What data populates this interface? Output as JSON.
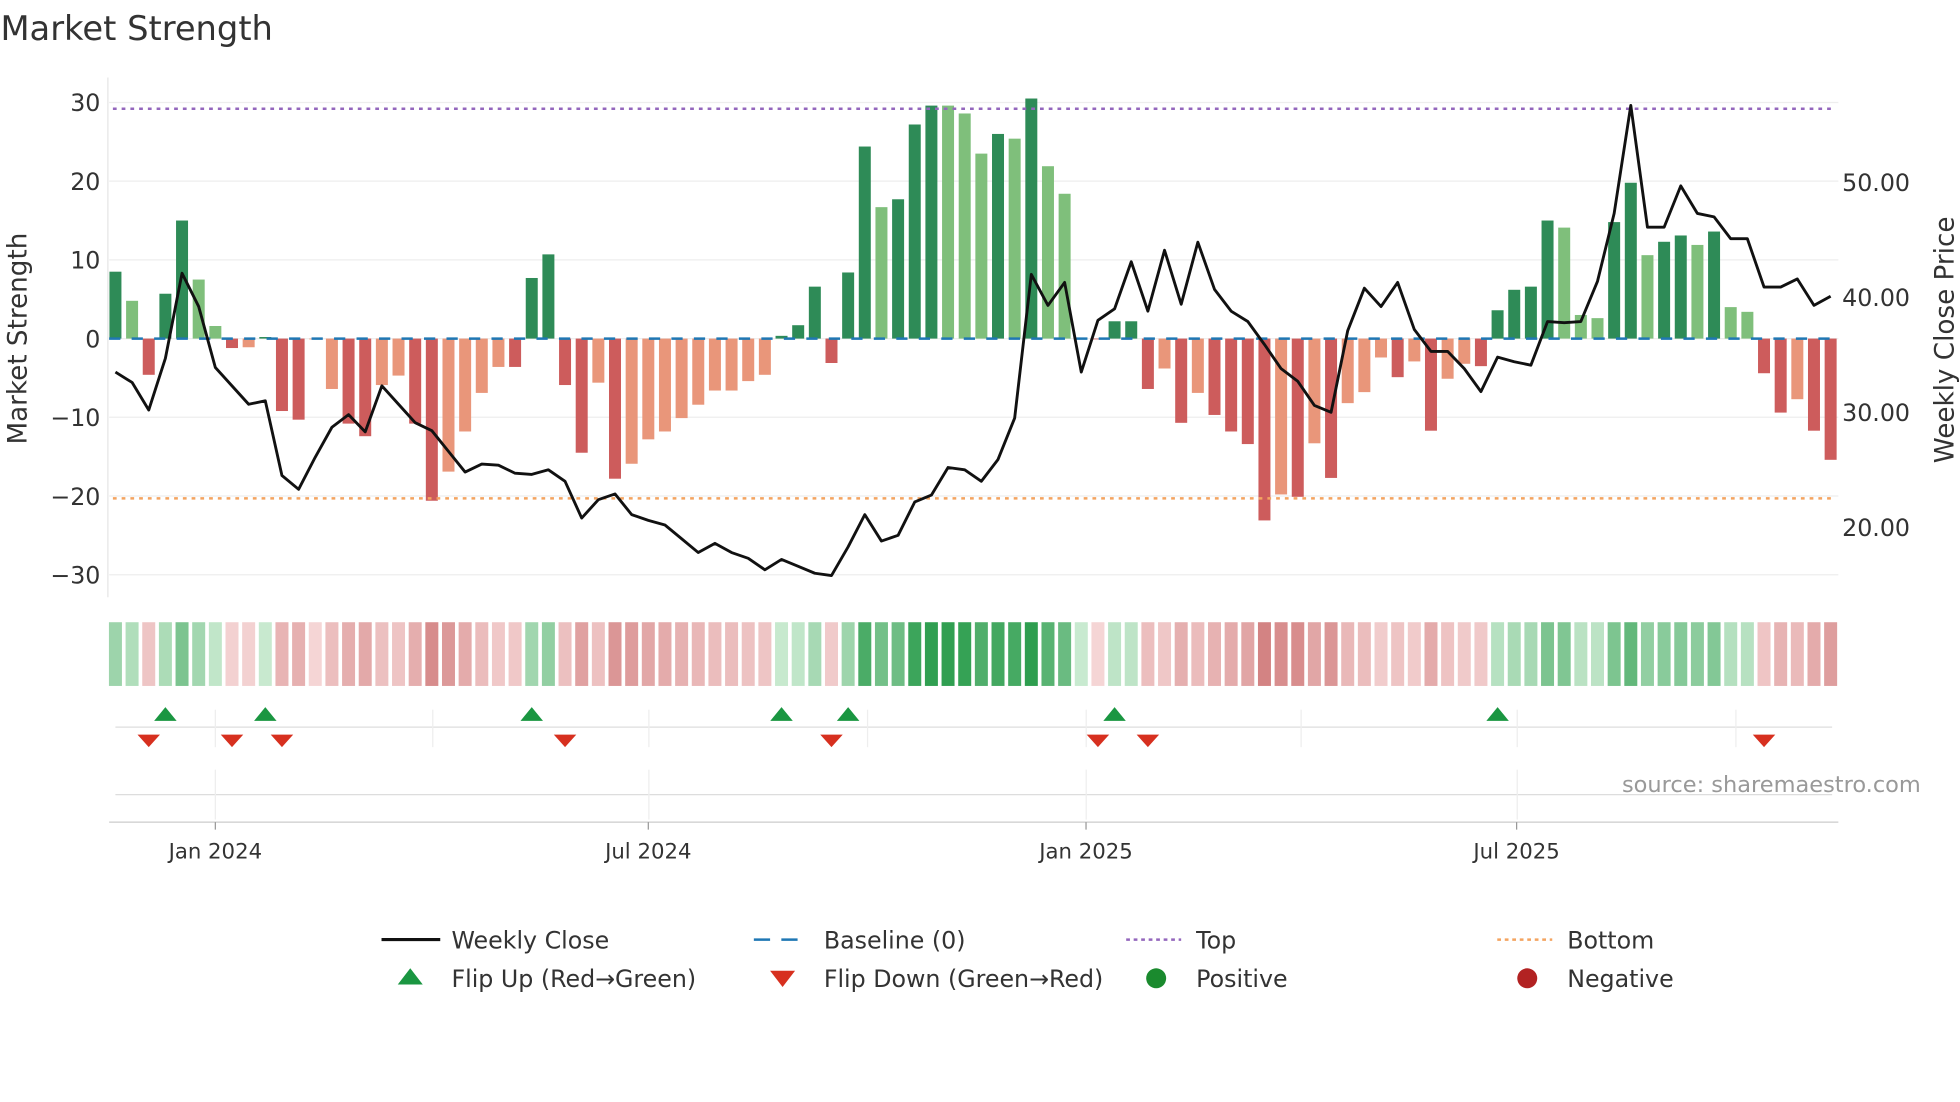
{
  "chart_data": {
    "type": "bar",
    "title": "Market Strength",
    "ylabel": "Market Strength",
    "y2label": "Weekly Close Price",
    "ylim": [
      -33,
      33
    ],
    "y2lim": [
      13.9,
      59.1
    ],
    "yticks": [
      -30,
      -20,
      -10,
      0,
      10,
      20,
      30
    ],
    "y2ticks": [
      "20.00",
      "30.00",
      "40.00",
      "50.00"
    ],
    "start_date": "2023-11-20",
    "interval_days": 7,
    "xticks": [
      {
        "date": "2024-01-01",
        "label": "Jan 2024"
      },
      {
        "date": "2024-07-01",
        "label": "Jul 2024"
      },
      {
        "date": "2025-01-01",
        "label": "Jan 2025"
      },
      {
        "date": "2025-07-01",
        "label": "Jul 2025"
      }
    ],
    "top_level": 29.2,
    "bottom_level": -20.3,
    "strength": [
      8.5,
      4.8,
      -4.6,
      5.7,
      15.0,
      7.5,
      1.6,
      -1.2,
      -1.1,
      0.2,
      -9.2,
      -10.3,
      -0.1,
      -6.4,
      -10.8,
      -12.4,
      -5.9,
      -4.7,
      -10.8,
      -20.6,
      -16.9,
      -11.8,
      -6.9,
      -3.6,
      -3.6,
      7.7,
      10.7,
      -5.9,
      -14.5,
      -5.6,
      -17.8,
      -15.9,
      -12.8,
      -11.8,
      -10.1,
      -8.4,
      -6.6,
      -6.6,
      -5.4,
      -4.6,
      0.35,
      1.7,
      6.6,
      -3.1,
      8.4,
      24.4,
      16.7,
      17.7,
      27.2,
      29.6,
      29.6,
      28.6,
      23.5,
      26.0,
      25.4,
      30.5,
      21.9,
      18.4,
      0.1,
      -0.1,
      2.2,
      2.2,
      -6.4,
      -3.8,
      -10.7,
      -6.9,
      -9.7,
      -11.8,
      -13.4,
      -23.1,
      -19.8,
      -20.1,
      -13.3,
      -17.7,
      -8.2,
      -6.8,
      -2.4,
      -4.9,
      -2.9,
      -11.7,
      -5.1,
      -3.2,
      -3.5,
      3.6,
      6.2,
      6.6,
      15.0,
      14.1,
      3.0,
      2.6,
      14.8,
      19.8,
      10.6,
      12.3,
      13.1,
      11.9,
      13.6,
      4.0,
      3.4,
      -4.4,
      -9.4,
      -7.7,
      -11.7,
      -15.4
    ],
    "shade": [
      "d",
      "l",
      "d",
      "d",
      "d",
      "l",
      "l",
      "d",
      "l",
      "d",
      "d",
      "d",
      "l",
      "l",
      "d",
      "d",
      "l",
      "l",
      "d",
      "d",
      "l",
      "l",
      "l",
      "l",
      "d",
      "d",
      "d",
      "d",
      "d",
      "l",
      "d",
      "l",
      "l",
      "l",
      "l",
      "l",
      "l",
      "l",
      "l",
      "l",
      "d",
      "d",
      "d",
      "d",
      "d",
      "d",
      "l",
      "d",
      "d",
      "d",
      "l",
      "l",
      "l",
      "d",
      "l",
      "d",
      "l",
      "l",
      "d",
      "d",
      "d",
      "d",
      "d",
      "l",
      "d",
      "l",
      "d",
      "d",
      "d",
      "d",
      "l",
      "d",
      "l",
      "d",
      "l",
      "l",
      "l",
      "d",
      "l",
      "d",
      "l",
      "l",
      "d",
      "d",
      "d",
      "d",
      "d",
      "l",
      "l",
      "l",
      "d",
      "d",
      "l",
      "d",
      "d",
      "l",
      "d",
      "l",
      "l",
      "d",
      "d",
      "l",
      "d",
      "d"
    ],
    "close": [
      33.5,
      32.6,
      30.2,
      34.7,
      42.1,
      39.2,
      33.9,
      32.3,
      30.7,
      31.0,
      24.5,
      23.3,
      26.1,
      28.7,
      29.8,
      28.3,
      32.3,
      30.7,
      29.1,
      28.4,
      26.6,
      24.8,
      25.5,
      25.4,
      24.7,
      24.6,
      25.0,
      24.0,
      20.8,
      22.4,
      22.9,
      21.1,
      20.6,
      20.2,
      19.0,
      17.8,
      18.6,
      17.8,
      17.3,
      16.3,
      17.2,
      16.6,
      16.0,
      15.8,
      18.3,
      21.1,
      18.8,
      19.3,
      22.2,
      22.8,
      25.2,
      25.0,
      24.0,
      25.9,
      29.5,
      42.0,
      39.3,
      41.3,
      33.5,
      38.0,
      39.0,
      43.1,
      38.8,
      44.1,
      39.4,
      44.8,
      40.7,
      38.8,
      37.9,
      35.9,
      33.8,
      32.7,
      30.6,
      30.0,
      37.1,
      40.8,
      39.2,
      41.3,
      37.2,
      35.3,
      35.3,
      33.8,
      31.8,
      34.8,
      34.4,
      34.1,
      37.9,
      37.8,
      37.9,
      41.4,
      47.3,
      56.7,
      46.1,
      46.1,
      49.7,
      47.3,
      47.0,
      45.1,
      45.1,
      40.9,
      40.9,
      41.6,
      39.3,
      40.1
    ],
    "legend": {
      "placement": "bottom",
      "items": [
        {
          "label": "Weekly Close",
          "kind": "line"
        },
        {
          "label": "Baseline (0)",
          "kind": "baseline"
        },
        {
          "label": "Top",
          "kind": "top"
        },
        {
          "label": "Bottom",
          "kind": "bottom"
        },
        {
          "label": "Flip Up (Red→Green)",
          "kind": "flipup"
        },
        {
          "label": "Flip Down (Green→Red)",
          "kind": "flipdown"
        },
        {
          "label": "Positive",
          "kind": "pos"
        },
        {
          "label": "Negative",
          "kind": "neg"
        }
      ]
    },
    "annotation": "source: sharemaestro.com"
  },
  "colors": {
    "pos_dark": "#2e8b57",
    "pos_light": "#7fbf7b",
    "neg_dark": "#cd5c5c",
    "neg_light": "#e9967a",
    "line": "#111111",
    "baseline": "#1f77b4",
    "top": "#9467bd",
    "bottom": "#f4a460",
    "flip_up": "#1a9641",
    "flip_down": "#d7301f",
    "pos_dot": "#1a8a2e",
    "neg_dot": "#b22222"
  }
}
